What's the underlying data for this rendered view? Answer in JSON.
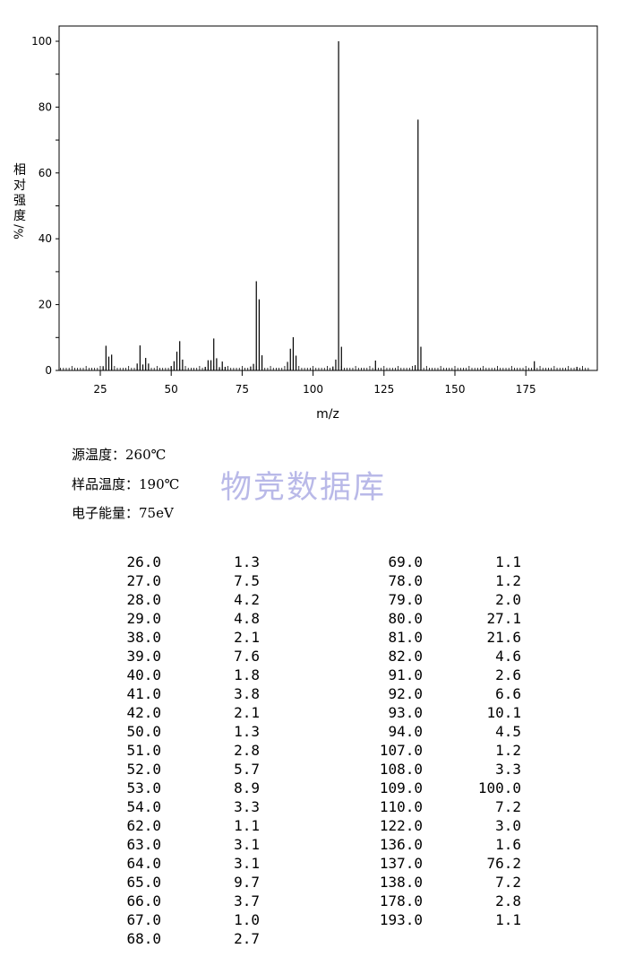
{
  "chart_data": {
    "type": "bar",
    "xlabel": "m/z",
    "ylabel_chars": [
      "相",
      "对",
      "强",
      "度",
      "%/"
    ],
    "xlim": [
      10,
      197
    ],
    "ylim": [
      0,
      100
    ],
    "x_ticks": [
      25,
      50,
      75,
      100,
      125,
      150,
      175
    ],
    "y_ticks": [
      0,
      20,
      40,
      60,
      80,
      100
    ],
    "peaks": [
      {
        "x": 26.0,
        "y": 1.3
      },
      {
        "x": 27.0,
        "y": 7.5
      },
      {
        "x": 28.0,
        "y": 4.2
      },
      {
        "x": 29.0,
        "y": 4.8
      },
      {
        "x": 38.0,
        "y": 2.1
      },
      {
        "x": 39.0,
        "y": 7.6
      },
      {
        "x": 40.0,
        "y": 1.8
      },
      {
        "x": 41.0,
        "y": 3.8
      },
      {
        "x": 42.0,
        "y": 2.1
      },
      {
        "x": 50.0,
        "y": 1.3
      },
      {
        "x": 51.0,
        "y": 2.8
      },
      {
        "x": 52.0,
        "y": 5.7
      },
      {
        "x": 53.0,
        "y": 8.9
      },
      {
        "x": 54.0,
        "y": 3.3
      },
      {
        "x": 62.0,
        "y": 1.1
      },
      {
        "x": 63.0,
        "y": 3.1
      },
      {
        "x": 64.0,
        "y": 3.1
      },
      {
        "x": 65.0,
        "y": 9.7
      },
      {
        "x": 66.0,
        "y": 3.7
      },
      {
        "x": 67.0,
        "y": 1.0
      },
      {
        "x": 68.0,
        "y": 2.7
      },
      {
        "x": 69.0,
        "y": 1.1
      },
      {
        "x": 78.0,
        "y": 1.2
      },
      {
        "x": 79.0,
        "y": 2.0
      },
      {
        "x": 80.0,
        "y": 27.1
      },
      {
        "x": 81.0,
        "y": 21.6
      },
      {
        "x": 82.0,
        "y": 4.6
      },
      {
        "x": 91.0,
        "y": 2.6
      },
      {
        "x": 92.0,
        "y": 6.6
      },
      {
        "x": 93.0,
        "y": 10.1
      },
      {
        "x": 94.0,
        "y": 4.5
      },
      {
        "x": 107.0,
        "y": 1.2
      },
      {
        "x": 108.0,
        "y": 3.3
      },
      {
        "x": 109.0,
        "y": 100.0
      },
      {
        "x": 110.0,
        "y": 7.2
      },
      {
        "x": 122.0,
        "y": 3.0
      },
      {
        "x": 136.0,
        "y": 1.6
      },
      {
        "x": 137.0,
        "y": 76.2
      },
      {
        "x": 138.0,
        "y": 7.2
      },
      {
        "x": 178.0,
        "y": 2.8
      },
      {
        "x": 193.0,
        "y": 1.1
      }
    ]
  },
  "info": {
    "source_temp": "源温度：260℃",
    "sample_temp": "样品温度：190℃",
    "electron_energy": "电子能量：75eV"
  },
  "watermark": "物竞数据库",
  "table": {
    "left": [
      [
        "26.0",
        "1.3"
      ],
      [
        "27.0",
        "7.5"
      ],
      [
        "28.0",
        "4.2"
      ],
      [
        "29.0",
        "4.8"
      ],
      [
        "38.0",
        "2.1"
      ],
      [
        "39.0",
        "7.6"
      ],
      [
        "40.0",
        "1.8"
      ],
      [
        "41.0",
        "3.8"
      ],
      [
        "42.0",
        "2.1"
      ],
      [
        "50.0",
        "1.3"
      ],
      [
        "51.0",
        "2.8"
      ],
      [
        "52.0",
        "5.7"
      ],
      [
        "53.0",
        "8.9"
      ],
      [
        "54.0",
        "3.3"
      ],
      [
        "62.0",
        "1.1"
      ],
      [
        "63.0",
        "3.1"
      ],
      [
        "64.0",
        "3.1"
      ],
      [
        "65.0",
        "9.7"
      ],
      [
        "66.0",
        "3.7"
      ],
      [
        "67.0",
        "1.0"
      ],
      [
        "68.0",
        "2.7"
      ]
    ],
    "right": [
      [
        "69.0",
        "1.1"
      ],
      [
        "78.0",
        "1.2"
      ],
      [
        "79.0",
        "2.0"
      ],
      [
        "80.0",
        "27.1"
      ],
      [
        "81.0",
        "21.6"
      ],
      [
        "82.0",
        "4.6"
      ],
      [
        "91.0",
        "2.6"
      ],
      [
        "92.0",
        "6.6"
      ],
      [
        "93.0",
        "10.1"
      ],
      [
        "94.0",
        "4.5"
      ],
      [
        "107.0",
        "1.2"
      ],
      [
        "108.0",
        "3.3"
      ],
      [
        "109.0",
        "100.0"
      ],
      [
        "110.0",
        "7.2"
      ],
      [
        "122.0",
        "3.0"
      ],
      [
        "136.0",
        "1.6"
      ],
      [
        "137.0",
        "76.2"
      ],
      [
        "138.0",
        "7.2"
      ],
      [
        "178.0",
        "2.8"
      ],
      [
        "193.0",
        "1.1"
      ]
    ]
  }
}
